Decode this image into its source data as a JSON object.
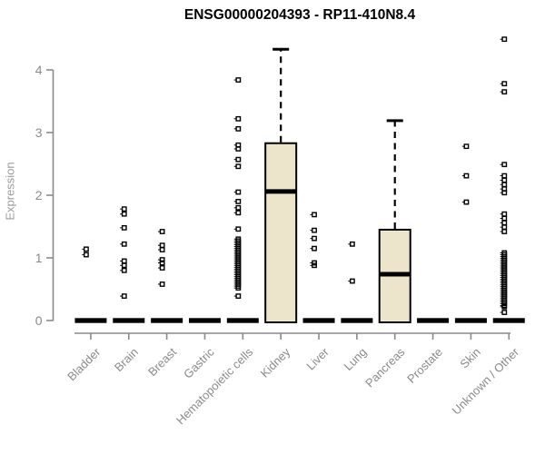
{
  "chart_data": {
    "type": "boxplot",
    "title": "ENSG00000204393 - RP11-410N8.4",
    "xlabel": "",
    "ylabel": "Expression",
    "ylim": [
      0,
      4.6
    ],
    "yticks": [
      0,
      1,
      2,
      3,
      4
    ],
    "grid": false,
    "legend": "none",
    "categories": [
      "Bladder",
      "Brain",
      "Breast",
      "Gastric",
      "Hematopoietic cells",
      "Kidney",
      "Liver",
      "Lung",
      "Pancreas",
      "Prostate",
      "Skin",
      "Unknown / Other"
    ],
    "series": [
      {
        "name": "Bladder",
        "q1": 0,
        "median": 0,
        "q3": 0,
        "whisker_low": 0,
        "whisker_high": 0,
        "points": [
          1.14,
          1.05
        ]
      },
      {
        "name": "Brain",
        "q1": 0,
        "median": 0,
        "q3": 0,
        "whisker_low": 0,
        "whisker_high": 0,
        "points": [
          1.78,
          1.7,
          1.48,
          1.22,
          0.95,
          0.88,
          0.8,
          0.39
        ]
      },
      {
        "name": "Breast",
        "q1": 0,
        "median": 0,
        "q3": 0,
        "whisker_low": 0,
        "whisker_high": 0,
        "points": [
          1.42,
          1.2,
          1.13,
          0.97,
          0.92,
          0.84,
          0.58
        ]
      },
      {
        "name": "Gastric",
        "q1": 0,
        "median": 0,
        "q3": 0,
        "whisker_low": 0,
        "whisker_high": 0,
        "points": []
      },
      {
        "name": "Hematopoietic cells",
        "q1": 0,
        "median": 0,
        "q3": 0,
        "whisker_low": 0,
        "whisker_high": 0,
        "points": [
          3.84,
          3.22,
          3.06,
          2.8,
          2.74,
          2.57,
          2.46,
          2.05,
          1.9,
          1.8,
          1.72,
          1.46,
          1.3,
          1.27,
          1.24,
          1.21,
          1.18,
          1.15,
          1.12,
          1.09,
          1.06,
          1.03,
          1.0,
          0.97,
          0.94,
          0.91,
          0.88,
          0.85,
          0.82,
          0.79,
          0.76,
          0.73,
          0.7,
          0.67,
          0.64,
          0.61,
          0.58,
          0.55,
          0.52,
          0.39
        ]
      },
      {
        "name": "Kidney",
        "q1": 0,
        "median": 2.06,
        "q3": 2.83,
        "whisker_low": 0,
        "whisker_high": 4.33,
        "points": []
      },
      {
        "name": "Liver",
        "q1": 0,
        "median": 0,
        "q3": 0,
        "whisker_low": 0,
        "whisker_high": 0,
        "points": [
          1.69,
          1.44,
          1.31,
          1.15,
          0.92,
          0.88
        ]
      },
      {
        "name": "Lung",
        "q1": 0,
        "median": 0,
        "q3": 0,
        "whisker_low": 0,
        "whisker_high": 0,
        "points": [
          1.22,
          0.63
        ]
      },
      {
        "name": "Pancreas",
        "q1": 0,
        "median": 0.74,
        "q3": 1.45,
        "whisker_low": 0,
        "whisker_high": 3.19,
        "points": []
      },
      {
        "name": "Prostate",
        "q1": 0,
        "median": 0,
        "q3": 0,
        "whisker_low": 0,
        "whisker_high": 0,
        "points": []
      },
      {
        "name": "Skin",
        "q1": 0,
        "median": 0,
        "q3": 0,
        "whisker_low": 0,
        "whisker_high": 0,
        "points": [
          2.78,
          2.31,
          1.89
        ]
      },
      {
        "name": "Unknown / Other",
        "q1": 0,
        "median": 0,
        "q3": 0,
        "whisker_low": 0,
        "whisker_high": 0,
        "points": [
          4.49,
          3.78,
          3.65,
          2.49,
          2.31,
          2.24,
          2.17,
          2.1,
          2.04,
          1.7,
          1.63,
          1.56,
          1.49,
          1.42,
          1.08,
          1.05,
          1.02,
          0.99,
          0.96,
          0.93,
          0.9,
          0.87,
          0.84,
          0.81,
          0.78,
          0.75,
          0.72,
          0.69,
          0.66,
          0.63,
          0.6,
          0.57,
          0.54,
          0.51,
          0.48,
          0.45,
          0.42,
          0.39,
          0.36,
          0.33,
          0.3,
          0.27,
          0.24,
          0.22,
          0.13
        ]
      }
    ],
    "colors": {
      "box_fill": "#ece5cc",
      "box_stroke": "#000000",
      "median": "#000000",
      "axis": "#8a8a8a",
      "tick_text": "#8a8a8a",
      "title_text": "#000000"
    }
  }
}
